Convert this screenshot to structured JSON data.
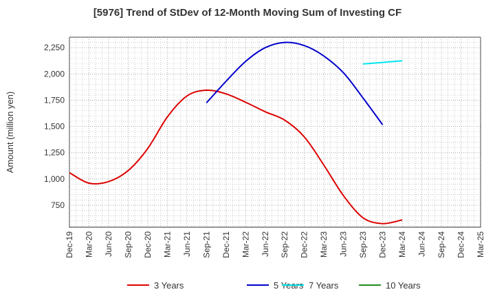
{
  "chart_data": {
    "type": "line",
    "title": "[5976]  Trend of StDev of 12-Month Moving Sum of Investing CF",
    "ylabel": "Amount (million yen)",
    "xlabel": "",
    "ylim": [
      540,
      2350
    ],
    "grid": true,
    "legend_position": "bottom",
    "yticks": [
      750,
      1000,
      1250,
      1500,
      1750,
      2000,
      2250
    ],
    "ytick_labels": [
      "750",
      "1,000",
      "1,250",
      "1,500",
      "1,750",
      "2,000",
      "2,250"
    ],
    "xticks": [
      "Dec-19",
      "Mar-20",
      "Jun-20",
      "Sep-20",
      "Dec-20",
      "Mar-21",
      "Jun-21",
      "Sep-21",
      "Dec-21",
      "Mar-22",
      "Jun-22",
      "Sep-22",
      "Dec-22",
      "Mar-23",
      "Jun-23",
      "Sep-23",
      "Dec-23",
      "Mar-24",
      "Jun-24",
      "Sep-24",
      "Dec-24",
      "Mar-25"
    ],
    "series": [
      {
        "name": "3 Years",
        "color": "#dd0000",
        "points": [
          [
            "Dec-19",
            1060
          ],
          [
            "Mar-20",
            960
          ],
          [
            "Jun-20",
            975
          ],
          [
            "Sep-20",
            1080
          ],
          [
            "Dec-20",
            1290
          ],
          [
            "Mar-21",
            1590
          ],
          [
            "Jun-21",
            1790
          ],
          [
            "Sep-21",
            1845
          ],
          [
            "Dec-21",
            1810
          ],
          [
            "Mar-22",
            1730
          ],
          [
            "Jun-22",
            1640
          ],
          [
            "Sep-22",
            1560
          ],
          [
            "Dec-22",
            1400
          ],
          [
            "Mar-23",
            1130
          ],
          [
            "Jun-23",
            840
          ],
          [
            "Sep-23",
            630
          ],
          [
            "Dec-23",
            575
          ],
          [
            "Mar-24",
            610
          ]
        ]
      },
      {
        "name": "5 Years",
        "color": "#0000cc",
        "points": [
          [
            "Sep-21",
            1725
          ],
          [
            "Dec-21",
            1930
          ],
          [
            "Mar-22",
            2120
          ],
          [
            "Jun-22",
            2250
          ],
          [
            "Sep-22",
            2300
          ],
          [
            "Dec-22",
            2270
          ],
          [
            "Mar-23",
            2170
          ],
          [
            "Jun-23",
            2010
          ],
          [
            "Sep-23",
            1770
          ],
          [
            "Dec-23",
            1515
          ]
        ]
      },
      {
        "name": "7 Years",
        "color": "#00e5ee",
        "points": [
          [
            "Sep-23",
            2095
          ],
          [
            "Dec-23",
            2110
          ],
          [
            "Mar-24",
            2125
          ]
        ]
      },
      {
        "name": "10 Years",
        "color": "#228b22",
        "points": []
      }
    ]
  }
}
